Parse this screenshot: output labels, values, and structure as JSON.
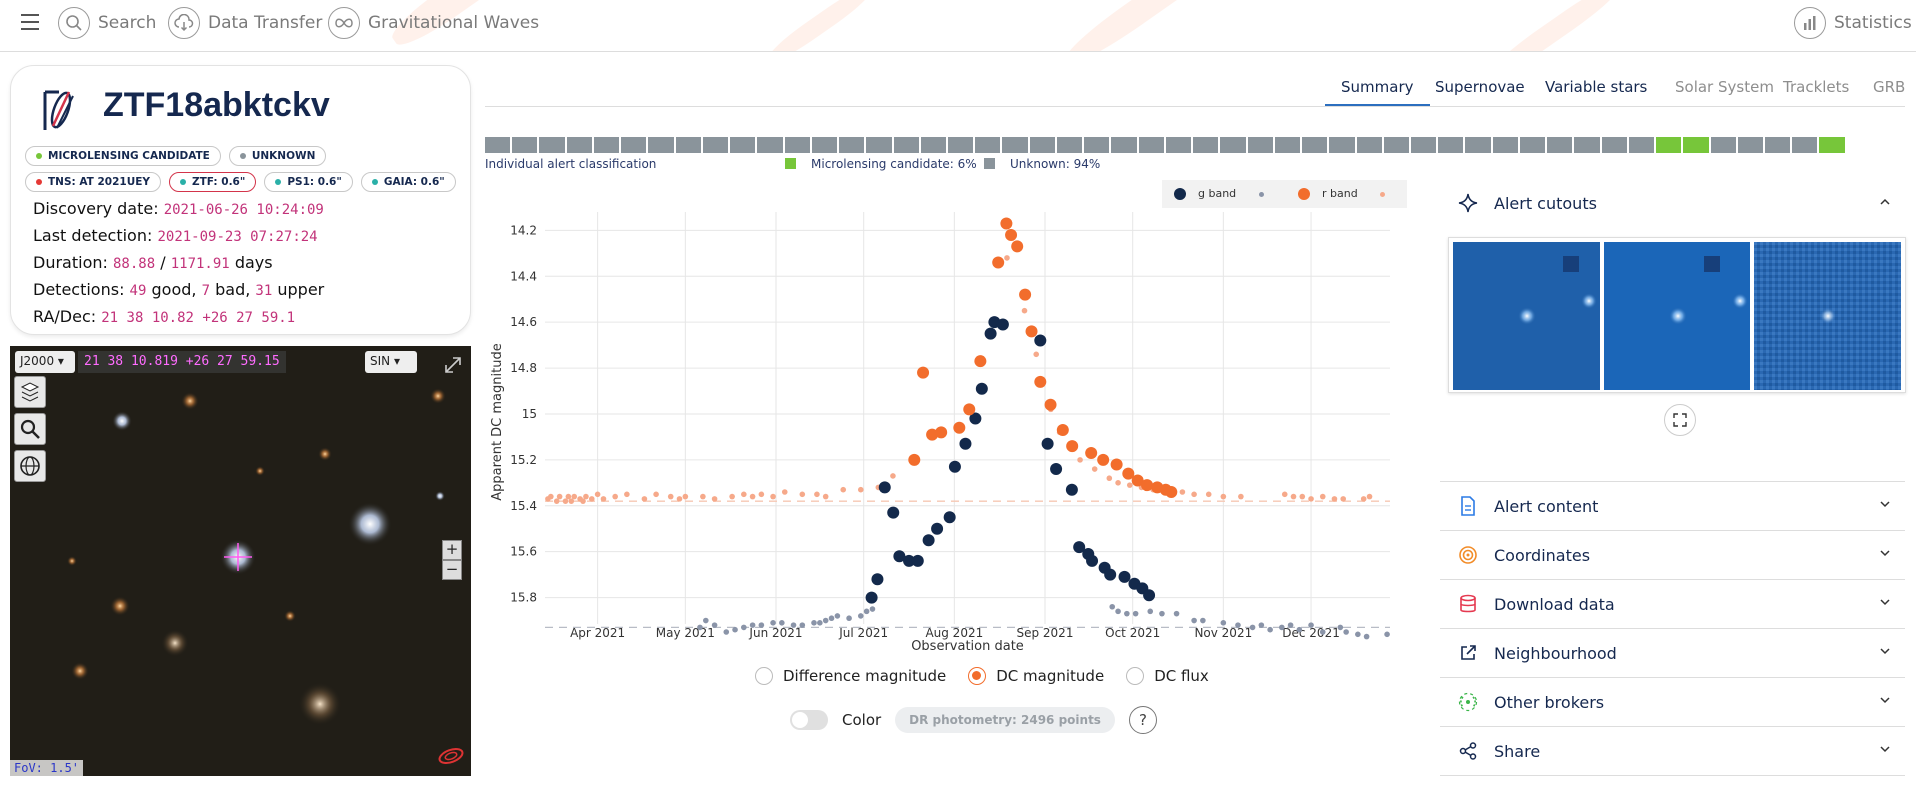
{
  "nav": {
    "items": [
      {
        "label": "Search",
        "icon": "search-icon"
      },
      {
        "label": "Data Transfer",
        "icon": "cloud-download-icon"
      },
      {
        "label": "Gravitational Waves",
        "icon": "infinity-icon"
      }
    ],
    "statistics_label": "Statistics"
  },
  "object": {
    "name": "ZTF18abktckv",
    "badges": [
      {
        "label": "MICROLENSING CANDIDATE",
        "color": "#77c63a"
      },
      {
        "label": "UNKNOWN",
        "color": "#8a949b"
      },
      {
        "label": "TNS: AT 2021UEY",
        "color": "#e53935"
      },
      {
        "label": "ZTF: 0.6\"",
        "color": "#2ab0a8"
      },
      {
        "label": "PS1: 0.6\"",
        "color": "#2ab0a8"
      },
      {
        "label": "GAIA: 0.6\"",
        "color": "#2ab0a8"
      }
    ],
    "discovery_label": "Discovery date:",
    "discovery_value": "2021-06-26 10:24:09",
    "last_label": "Last detection:",
    "last_value": "2021-09-23 07:27:24",
    "duration_label": "Duration:",
    "duration_value1": "88.88",
    "duration_sep": "/",
    "duration_value2": "1171.91",
    "duration_unit": "days",
    "detections_label": "Detections:",
    "det_good": "49",
    "det_good_label": "good,",
    "det_bad": "7",
    "det_bad_label": "bad,",
    "det_upper": "31",
    "det_upper_label": "upper",
    "radec_label": "RA/Dec:",
    "radec_value": "21 38 10.82 +26 27 59.1"
  },
  "aladin": {
    "frame": "J2000",
    "coord": "21 38 10.819 +26 27 59.15",
    "projection": "SIN",
    "fov": "FoV: 1.5'",
    "zoom_in": "+",
    "zoom_out": "−"
  },
  "tabs": [
    {
      "label": "Summary",
      "active": true,
      "muted": false
    },
    {
      "label": "Supernovae",
      "active": false,
      "muted": false
    },
    {
      "label": "Variable stars",
      "active": false,
      "muted": false
    },
    {
      "label": "Solar System",
      "active": false,
      "muted": true
    },
    {
      "label": "Tracklets",
      "active": false,
      "muted": true
    },
    {
      "label": "GRB",
      "active": false,
      "muted": true
    }
  ],
  "classification": {
    "caption": "Individual alert classification",
    "legend": [
      {
        "label": "Microlensing candidate: 6%",
        "color": "#77c63a"
      },
      {
        "label": "Unknown: 94%",
        "color": "#8a949b"
      }
    ],
    "segments": [
      "u",
      "u",
      "u",
      "u",
      "u",
      "u",
      "u",
      "u",
      "u",
      "u",
      "u",
      "u",
      "u",
      "u",
      "u",
      "u",
      "u",
      "u",
      "u",
      "u",
      "u",
      "u",
      "u",
      "u",
      "u",
      "u",
      "u",
      "u",
      "u",
      "u",
      "u",
      "u",
      "u",
      "u",
      "u",
      "u",
      "u",
      "u",
      "u",
      "u",
      "u",
      "u",
      "u",
      "g",
      "g",
      "u",
      "u",
      "u",
      "u",
      "g"
    ]
  },
  "chart_data": {
    "type": "scatter",
    "xlabel": "Observation date",
    "ylabel": "Apparent DC magnitude",
    "x_ticks": [
      "Apr 2021",
      "May 2021",
      "Jun 2021",
      "Jul 2021",
      "Aug 2021",
      "Sep 2021",
      "Oct 2021",
      "Nov 2021",
      "Dec 2021"
    ],
    "y_ticks": [
      "14.2",
      "14.4",
      "14.6",
      "14.8",
      "15",
      "15.2",
      "15.4",
      "15.6",
      "15.8"
    ],
    "ylim": [
      15.95,
      14.12
    ],
    "x_range_days": [
      -18,
      271
    ],
    "reference_lines": [
      {
        "band": "g",
        "y": 15.93
      },
      {
        "band": "r",
        "y": 15.38
      }
    ],
    "legend": [
      {
        "label": "g band",
        "color": "#13294b"
      },
      {
        "label": "r band",
        "color": "#f26d2c"
      }
    ],
    "series": [
      {
        "name": "g band",
        "kind": "detection",
        "color": "#13294b",
        "x": [
          93.7,
          95.7,
          98.2,
          101.1,
          103.2,
          106.5,
          109.5,
          113.2,
          116.1,
          120.4,
          122.2,
          125.8,
          129.2,
          131.4,
          134.4,
          135.7,
          138.6,
          151.4,
          153.9,
          156.8,
          162.2,
          164.7,
          167.8,
          169.1,
          173.4,
          175.3,
          180.2,
          183.6,
          186.3,
          188.6
        ],
        "y": [
          15.8,
          15.72,
          15.32,
          15.43,
          15.62,
          15.64,
          15.64,
          15.55,
          15.5,
          15.45,
          15.23,
          15.13,
          15.02,
          14.89,
          14.65,
          14.6,
          14.61,
          14.68,
          15.13,
          15.24,
          15.33,
          15.58,
          15.61,
          15.64,
          15.67,
          15.7,
          15.71,
          15.74,
          15.76,
          15.79
        ]
      },
      {
        "name": "g band",
        "kind": "upper-limit",
        "color": "#8a94a8",
        "x": [
          35,
          37,
          40,
          44,
          47,
          50,
          53,
          56,
          60,
          63,
          67,
          70,
          74,
          76,
          78,
          80,
          82,
          86,
          90,
          92,
          94,
          176,
          178,
          181,
          184,
          189,
          193,
          198,
          204,
          207,
          214,
          219,
          224,
          227,
          230,
          234,
          237,
          240,
          244,
          248,
          254,
          256,
          260,
          263,
          270
        ],
        "y": [
          15.93,
          15.9,
          15.92,
          15.95,
          15.94,
          15.93,
          15.92,
          15.92,
          15.91,
          15.91,
          15.92,
          15.92,
          15.91,
          15.91,
          15.9,
          15.89,
          15.88,
          15.89,
          15.88,
          15.86,
          15.85,
          15.84,
          15.86,
          15.87,
          15.87,
          15.86,
          15.87,
          15.87,
          15.9,
          15.9,
          15.91,
          15.92,
          15.93,
          15.92,
          15.94,
          15.93,
          15.92,
          15.94,
          15.92,
          15.95,
          15.93,
          15.95,
          15.96,
          15.97,
          15.96
        ]
      },
      {
        "name": "r band",
        "kind": "detection",
        "color": "#f26d2c",
        "x": [
          108.3,
          111.3,
          114.4,
          117.5,
          123.7,
          127.1,
          130.9,
          137.0,
          139.8,
          141.4,
          143.5,
          146.2,
          148.4,
          151.4,
          154.9,
          159.1,
          162.3,
          168.8,
          172.9,
          177.5,
          181.5,
          184.7,
          187.9,
          191.4,
          194.3,
          196.2
        ],
        "y": [
          15.2,
          14.82,
          15.09,
          15.08,
          15.06,
          14.98,
          14.77,
          14.34,
          14.17,
          14.22,
          14.27,
          14.48,
          14.64,
          14.86,
          14.96,
          15.07,
          15.14,
          15.17,
          15.2,
          15.22,
          15.26,
          15.29,
          15.31,
          15.32,
          15.33,
          15.34
        ]
      },
      {
        "name": "r band",
        "kind": "upper-limit",
        "color": "#f6a98a",
        "x": [
          -17,
          -16,
          -14,
          -13,
          -11,
          -10,
          -9,
          -8,
          -6,
          -5,
          -4,
          -2,
          0,
          2,
          6,
          10,
          16,
          20,
          25,
          28,
          30,
          36,
          40,
          46,
          50,
          53,
          56,
          60,
          64,
          70,
          75,
          78,
          84,
          90,
          96,
          98,
          101,
          140,
          146,
          150,
          155,
          158,
          162,
          165,
          170,
          175,
          178,
          182,
          186,
          190,
          196,
          200,
          204,
          209,
          214,
          220,
          235,
          238,
          241,
          244,
          248,
          252,
          255,
          262,
          264
        ],
        "y": [
          15.37,
          15.36,
          15.38,
          15.36,
          15.38,
          15.36,
          15.38,
          15.36,
          15.37,
          15.38,
          15.36,
          15.37,
          15.35,
          15.37,
          15.36,
          15.35,
          15.37,
          15.35,
          15.36,
          15.37,
          15.36,
          15.36,
          15.37,
          15.36,
          15.35,
          15.36,
          15.35,
          15.36,
          15.34,
          15.35,
          15.35,
          15.36,
          15.33,
          15.33,
          15.32,
          15.32,
          15.27,
          14.32,
          14.55,
          14.74,
          14.98,
          15.08,
          15.15,
          15.2,
          15.24,
          15.28,
          15.3,
          15.31,
          15.32,
          15.33,
          15.35,
          15.34,
          15.35,
          15.35,
          15.36,
          15.36,
          15.35,
          15.36,
          15.36,
          15.37,
          15.36,
          15.37,
          15.37,
          15.37,
          15.36
        ]
      }
    ]
  },
  "plot_options": {
    "diff_mag": "Difference magnitude",
    "dc_mag": "DC magnitude",
    "dc_flux": "DC flux",
    "color_label": "Color",
    "dr_button": "DR photometry: 2496 points",
    "help": "?"
  },
  "sidebar": {
    "sections": [
      {
        "label": "Alert cutouts",
        "icon": "sparkle-icon",
        "expanded": true
      },
      {
        "label": "Alert content",
        "icon": "document-icon",
        "expanded": false
      },
      {
        "label": "Coordinates",
        "icon": "target-icon",
        "expanded": false
      },
      {
        "label": "Download data",
        "icon": "database-icon",
        "expanded": false
      },
      {
        "label": "Neighbourhood",
        "icon": "external-link-icon",
        "expanded": false
      },
      {
        "label": "Other brokers",
        "icon": "broadcast-icon",
        "expanded": false
      },
      {
        "label": "Share",
        "icon": "share-icon",
        "expanded": false
      }
    ],
    "cutouts": [
      "science",
      "template",
      "difference"
    ]
  }
}
